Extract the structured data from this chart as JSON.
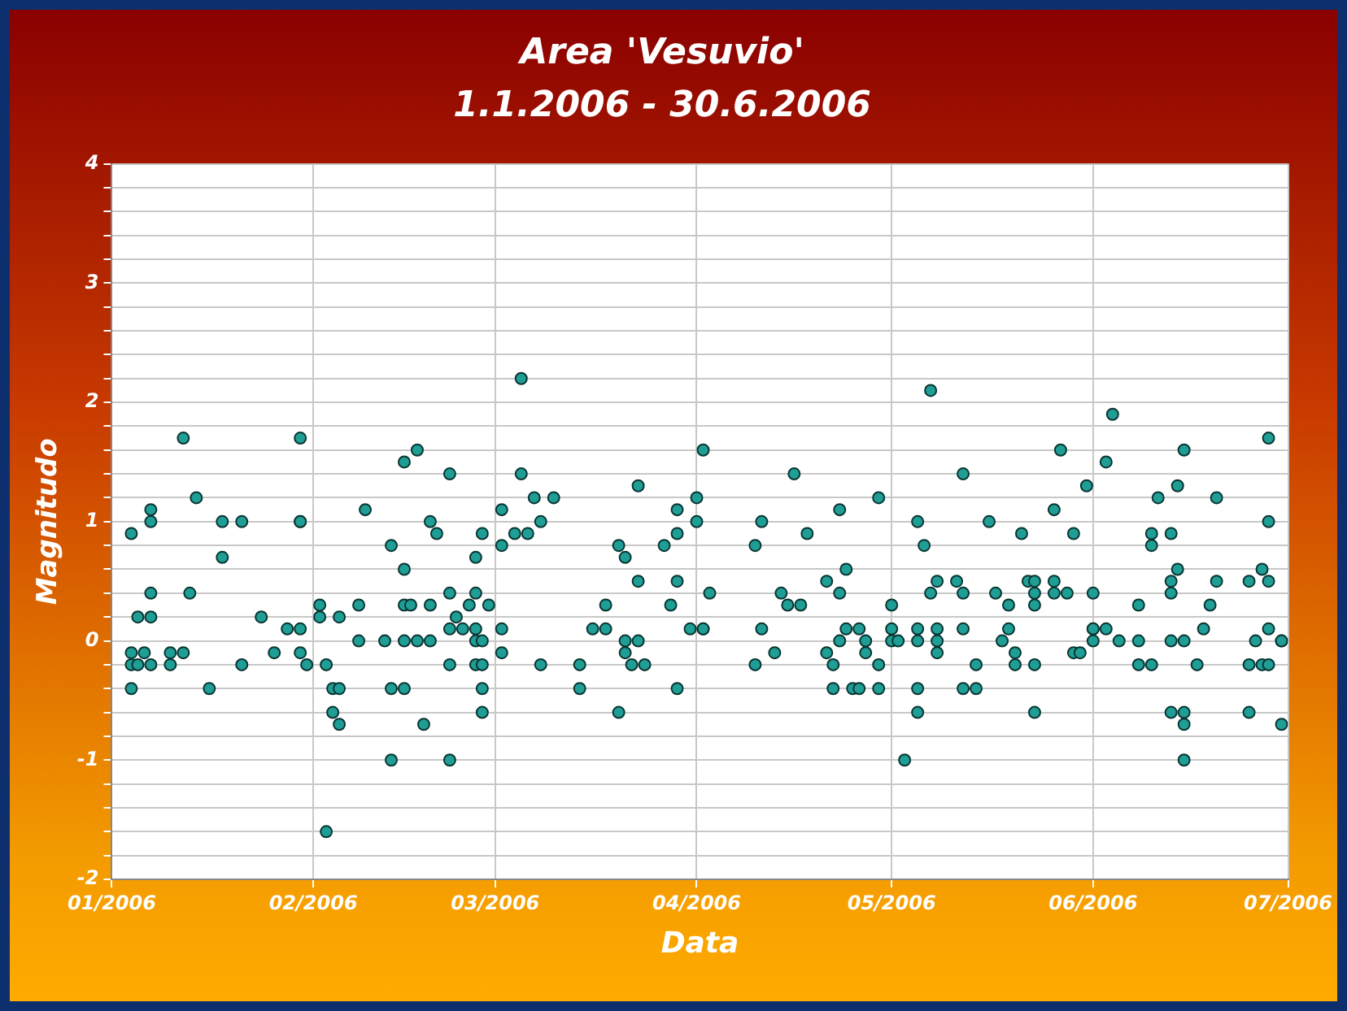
{
  "chart_data": {
    "type": "scatter",
    "title": "Area 'Vesuvio'",
    "subtitle": "1.1.2006 - 30.6.2006",
    "xlabel": "Data",
    "ylabel": "Magnitudo",
    "xlim": [
      "2006-01",
      "2006-07"
    ],
    "xticks": [
      {
        "value": "2006-01",
        "label": "01/2006"
      },
      {
        "value": "2006-02",
        "label": "02/2006"
      },
      {
        "value": "2006-03",
        "label": "03/2006"
      },
      {
        "value": "2006-04",
        "label": "04/2006"
      },
      {
        "value": "2006-05",
        "label": "05/2006"
      },
      {
        "value": "2006-06",
        "label": "06/2006"
      },
      {
        "value": "2006-07",
        "label": "07/2006"
      }
    ],
    "ylim": [
      -2,
      4
    ],
    "yticks": [
      -2,
      {
        "value": -1.8,
        "label": null
      },
      {
        "value": -1.6,
        "label": null
      },
      {
        "value": -1.4,
        "label": null
      },
      {
        "value": -1.2,
        "label": null
      },
      -1,
      {
        "value": -0.8,
        "label": null
      },
      {
        "value": -0.6,
        "label": null
      },
      {
        "value": -0.4,
        "label": null
      },
      {
        "value": -0.2,
        "label": null
      },
      0,
      {
        "value": 0.2,
        "label": null
      },
      {
        "value": 0.4,
        "label": null
      },
      {
        "value": 0.6,
        "label": null
      },
      {
        "value": 0.8,
        "label": null
      },
      1,
      {
        "value": 1.2,
        "label": null
      },
      {
        "value": 1.4,
        "label": null
      },
      {
        "value": 1.6,
        "label": null
      },
      {
        "value": 1.8,
        "label": null
      },
      2,
      {
        "value": 2.2,
        "label": null
      },
      {
        "value": 2.4,
        "label": null
      },
      {
        "value": 2.6,
        "label": null
      },
      {
        "value": 2.8,
        "label": null
      },
      3,
      {
        "value": 3.2,
        "label": null
      },
      {
        "value": 3.4,
        "label": null
      },
      {
        "value": 3.6,
        "label": null
      },
      {
        "value": 3.8,
        "label": null
      },
      4
    ],
    "grid": true,
    "legend": false,
    "marker": "circle",
    "series": [
      {
        "color": "#1f9e96",
        "x": [
          "2006-01-04",
          "2006-01-04",
          "2006-01-04",
          "2006-01-04",
          "2006-01-05",
          "2006-01-05",
          "2006-01-06",
          "2006-01-07",
          "2006-01-07",
          "2006-01-07",
          "2006-01-07",
          "2006-01-07",
          "2006-01-10",
          "2006-01-10",
          "2006-01-12",
          "2006-01-12",
          "2006-01-13",
          "2006-01-14",
          "2006-01-16",
          "2006-01-18",
          "2006-01-18",
          "2006-01-21",
          "2006-01-21",
          "2006-01-24",
          "2006-01-26",
          "2006-01-28",
          "2006-01-30",
          "2006-01-30",
          "2006-01-30",
          "2006-01-30",
          "2006-01-30",
          "2006-01-31",
          "2006-02-02",
          "2006-02-02",
          "2006-02-03",
          "2006-02-03",
          "2006-02-04",
          "2006-02-04",
          "2006-02-05",
          "2006-02-05",
          "2006-02-05",
          "2006-02-08",
          "2006-02-08",
          "2006-02-09",
          "2006-02-12",
          "2006-02-13",
          "2006-02-13",
          "2006-02-13",
          "2006-02-15",
          "2006-02-15",
          "2006-02-15",
          "2006-02-15",
          "2006-02-15",
          "2006-02-16",
          "2006-02-17",
          "2006-02-17",
          "2006-02-18",
          "2006-02-19",
          "2006-02-19",
          "2006-02-19",
          "2006-02-20",
          "2006-02-22",
          "2006-02-22",
          "2006-02-22",
          "2006-02-22",
          "2006-02-22",
          "2006-02-23",
          "2006-02-24",
          "2006-02-25",
          "2006-02-26",
          "2006-02-26",
          "2006-02-26",
          "2006-02-26",
          "2006-02-26",
          "2006-02-27",
          "2006-02-27",
          "2006-02-27",
          "2006-02-27",
          "2006-02-27",
          "2006-02-28",
          "2006-03-02",
          "2006-03-02",
          "2006-03-02",
          "2006-03-02",
          "2006-03-04",
          "2006-03-05",
          "2006-03-05",
          "2006-03-06",
          "2006-03-07",
          "2006-03-08",
          "2006-03-08",
          "2006-03-10",
          "2006-03-14",
          "2006-03-14",
          "2006-03-16",
          "2006-03-18",
          "2006-03-18",
          "2006-03-20",
          "2006-03-20",
          "2006-03-21",
          "2006-03-21",
          "2006-03-21",
          "2006-03-22",
          "2006-03-23",
          "2006-03-23",
          "2006-03-23",
          "2006-03-24",
          "2006-03-27",
          "2006-03-28",
          "2006-03-29",
          "2006-03-29",
          "2006-03-29",
          "2006-03-29",
          "2006-03-31",
          "2006-04-01",
          "2006-04-01",
          "2006-04-02",
          "2006-04-02",
          "2006-04-02",
          "2006-04-03",
          "2006-04-10",
          "2006-04-10",
          "2006-04-11",
          "2006-04-11",
          "2006-04-13",
          "2006-04-14",
          "2006-04-15",
          "2006-04-16",
          "2006-04-17",
          "2006-04-18",
          "2006-04-21",
          "2006-04-21",
          "2006-04-22",
          "2006-04-22",
          "2006-04-23",
          "2006-04-23",
          "2006-04-23",
          "2006-04-24",
          "2006-04-24",
          "2006-04-25",
          "2006-04-26",
          "2006-04-26",
          "2006-04-27",
          "2006-04-27",
          "2006-04-29",
          "2006-04-29",
          "2006-04-29",
          "2006-05-01",
          "2006-05-01",
          "2006-05-01",
          "2006-05-02",
          "2006-05-03",
          "2006-05-05",
          "2006-05-05",
          "2006-05-05",
          "2006-05-05",
          "2006-05-05",
          "2006-05-06",
          "2006-05-07",
          "2006-05-07",
          "2006-05-08",
          "2006-05-08",
          "2006-05-08",
          "2006-05-08",
          "2006-05-11",
          "2006-05-12",
          "2006-05-12",
          "2006-05-12",
          "2006-05-12",
          "2006-05-14",
          "2006-05-14",
          "2006-05-16",
          "2006-05-17",
          "2006-05-18",
          "2006-05-19",
          "2006-05-19",
          "2006-05-20",
          "2006-05-20",
          "2006-05-21",
          "2006-05-22",
          "2006-05-23",
          "2006-05-23",
          "2006-05-23",
          "2006-05-23",
          "2006-05-23",
          "2006-05-26",
          "2006-05-26",
          "2006-05-26",
          "2006-05-27",
          "2006-05-28",
          "2006-05-29",
          "2006-05-29",
          "2006-05-30",
          "2006-05-31",
          "2006-06-01",
          "2006-06-01",
          "2006-06-01",
          "2006-06-01",
          "2006-06-03",
          "2006-06-03",
          "2006-06-04",
          "2006-06-05",
          "2006-06-08",
          "2006-06-08",
          "2006-06-08",
          "2006-06-10",
          "2006-06-10",
          "2006-06-10",
          "2006-06-11",
          "2006-06-13",
          "2006-06-13",
          "2006-06-13",
          "2006-06-13",
          "2006-06-13",
          "2006-06-14",
          "2006-06-14",
          "2006-06-15",
          "2006-06-15",
          "2006-06-15",
          "2006-06-15",
          "2006-06-15",
          "2006-06-17",
          "2006-06-18",
          "2006-06-19",
          "2006-06-20",
          "2006-06-20",
          "2006-06-25",
          "2006-06-25",
          "2006-06-25",
          "2006-06-26",
          "2006-06-27",
          "2006-06-27",
          "2006-06-28",
          "2006-06-28",
          "2006-06-28",
          "2006-06-28",
          "2006-06-28",
          "2006-06-30",
          "2006-06-30",
          "2006-06-30"
        ],
        "values": [
          0.9,
          -0.1,
          -0.2,
          -0.4,
          0.2,
          -0.2,
          -0.1,
          1.1,
          1.0,
          0.4,
          0.2,
          -0.2,
          -0.1,
          -0.2,
          1.7,
          -0.1,
          0.4,
          1.2,
          -0.4,
          1.0,
          0.7,
          1.0,
          -0.2,
          0.2,
          -0.1,
          0.1,
          1.7,
          1.0,
          1.0,
          0.1,
          -0.1,
          -0.2,
          0.3,
          0.2,
          -0.2,
          -1.6,
          -0.4,
          -0.6,
          0.2,
          -0.4,
          -0.7,
          0.3,
          0.0,
          1.1,
          0.0,
          0.8,
          -1.0,
          -0.4,
          1.5,
          0.6,
          0.3,
          0.0,
          -0.4,
          0.3,
          1.6,
          0.0,
          -0.7,
          1.0,
          0.3,
          0.0,
          0.9,
          1.4,
          0.4,
          0.1,
          -0.2,
          -1.0,
          0.2,
          0.1,
          0.3,
          0.0,
          0.4,
          0.1,
          0.7,
          -0.2,
          0.0,
          -0.4,
          0.9,
          -0.2,
          -0.6,
          0.3,
          1.1,
          0.8,
          -0.1,
          0.1,
          0.9,
          2.2,
          1.4,
          0.9,
          1.2,
          1.0,
          -0.2,
          1.2,
          -0.2,
          -0.4,
          0.1,
          0.3,
          0.1,
          0.8,
          -0.6,
          0.0,
          -0.1,
          0.7,
          -0.2,
          0.0,
          1.3,
          0.5,
          -0.2,
          0.8,
          0.3,
          0.5,
          -0.4,
          1.1,
          0.9,
          0.1,
          1.2,
          1.0,
          1.6,
          0.1,
          0.1,
          0.4,
          0.8,
          -0.2,
          1.0,
          0.1,
          -0.1,
          0.4,
          0.3,
          1.4,
          0.3,
          0.9,
          0.5,
          -0.1,
          -0.2,
          -0.4,
          1.1,
          0.4,
          0.0,
          0.6,
          0.1,
          -0.4,
          0.1,
          -0.4,
          0.0,
          -0.1,
          1.2,
          -0.2,
          -0.4,
          0.3,
          0.0,
          0.1,
          0.0,
          -1.0,
          1.0,
          0.1,
          0.0,
          -0.4,
          -0.6,
          0.8,
          0.4,
          2.1,
          0.1,
          0.5,
          -0.1,
          0.0,
          0.5,
          0.4,
          0.1,
          -0.4,
          1.4,
          -0.2,
          -0.4,
          1.0,
          0.4,
          0.0,
          0.3,
          0.1,
          -0.1,
          -0.2,
          0.9,
          0.5,
          0.4,
          0.3,
          -0.2,
          -0.6,
          0.5,
          1.1,
          0.5,
          0.4,
          1.6,
          0.4,
          -0.1,
          0.9,
          -0.1,
          1.3,
          0.1,
          0.1,
          0.4,
          0.0,
          1.5,
          0.1,
          1.9,
          0.0,
          0.0,
          0.3,
          -0.2,
          0.9,
          0.8,
          -0.2,
          1.2,
          0.0,
          0.4,
          0.9,
          0.5,
          -0.6,
          1.3,
          0.6,
          1.6,
          0.0,
          -0.6,
          -0.7,
          -1.0,
          -0.2,
          0.1,
          0.3,
          1.2,
          0.5,
          -0.2,
          -0.6,
          0.5,
          0.0,
          0.6,
          -0.2,
          1.7,
          1.0,
          0.1,
          -0.2,
          0.5,
          0.0,
          0.0,
          -0.7
        ]
      }
    ]
  }
}
